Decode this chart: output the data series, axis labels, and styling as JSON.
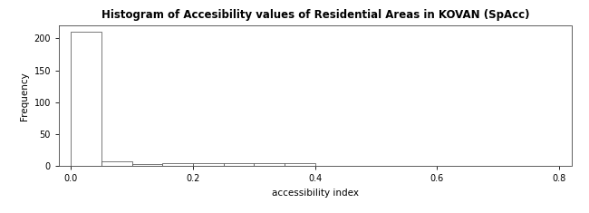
{
  "title": "Histogram of Accesibility values of Residential Areas in KOVAN (SpAcc)",
  "xlabel": "accessibility index",
  "ylabel": "Frequency",
  "xlim": [
    -0.02,
    0.82
  ],
  "ylim": [
    0,
    220
  ],
  "yticks": [
    0,
    50,
    100,
    150,
    200
  ],
  "xticks": [
    0.0,
    0.2,
    0.4,
    0.6,
    0.8
  ],
  "bin_edges": [
    0.0,
    0.05,
    0.1,
    0.15,
    0.2,
    0.25,
    0.3,
    0.35,
    0.4,
    0.45,
    0.5,
    0.55,
    0.6,
    0.65,
    0.7,
    0.75,
    0.8
  ],
  "frequencies": [
    210,
    8,
    3,
    4,
    4,
    5,
    5,
    4,
    1,
    1,
    1,
    0,
    0,
    1,
    0,
    1
  ],
  "bar_facecolor": "white",
  "bar_edgecolor": "#444444",
  "background_color": "white",
  "title_fontsize": 8.5,
  "axis_label_fontsize": 7.5,
  "tick_fontsize": 7
}
